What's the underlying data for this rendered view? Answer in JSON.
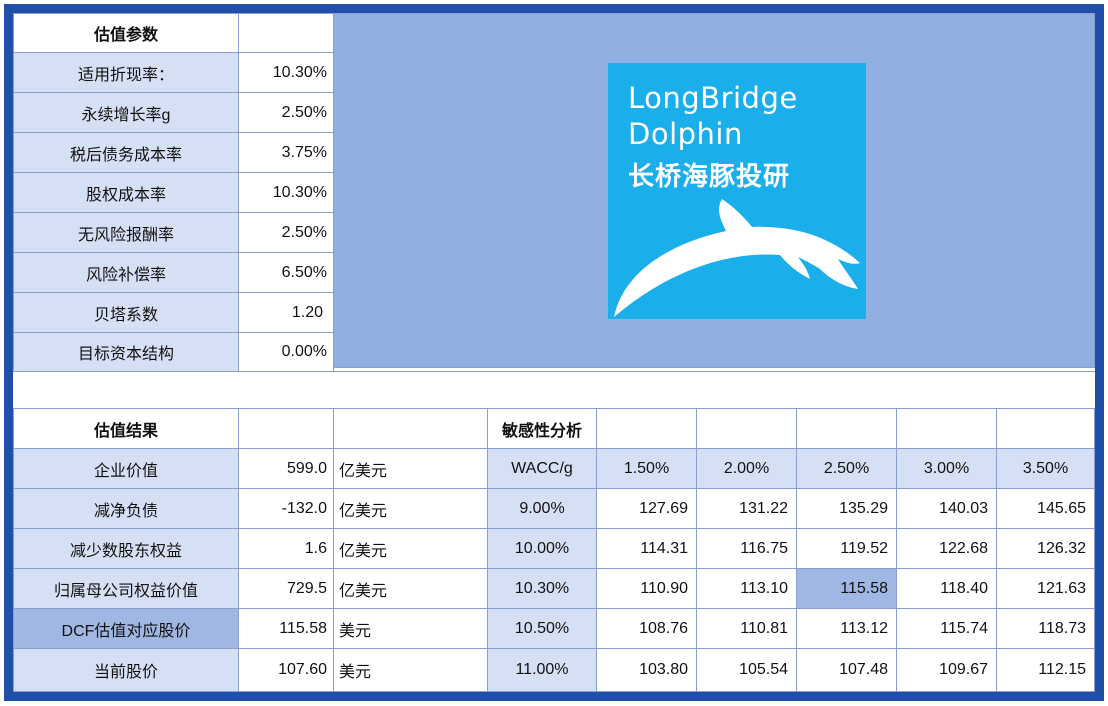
{
  "params": {
    "title": "估值参数",
    "rows": [
      {
        "label": "适用折现率：",
        "value": "10.30%"
      },
      {
        "label": "永续增长率g",
        "value": "2.50%"
      },
      {
        "label": "税后债务成本率",
        "value": "3.75%"
      },
      {
        "label": "股权成本率",
        "value": "10.30%"
      },
      {
        "label": "无风险报酬率",
        "value": "2.50%"
      },
      {
        "label": "风险补偿率",
        "value": "6.50%"
      },
      {
        "label": "贝塔系数",
        "value": "1.20"
      },
      {
        "label": "目标资本结构",
        "value": "0.00%"
      }
    ]
  },
  "logo": {
    "line1": "LongBridge",
    "line2": "Dolphin",
    "line3": "长桥海豚投研"
  },
  "results": {
    "title": "估值结果",
    "rows": [
      {
        "label": "企业价值",
        "value": "599.0",
        "unit": "亿美元"
      },
      {
        "label": "减净负债",
        "value": "-132.0",
        "unit": "亿美元"
      },
      {
        "label": "减少数股东权益",
        "value": "1.6",
        "unit": "亿美元"
      },
      {
        "label": "归属母公司权益价值",
        "value": "729.5",
        "unit": "亿美元"
      },
      {
        "label": "DCF估值对应股价",
        "value": "115.58",
        "unit": "美元"
      },
      {
        "label": "当前股价",
        "value": "107.60",
        "unit": "美元"
      }
    ]
  },
  "sensitivity": {
    "title": "敏感性分析",
    "corner": "WACC/g",
    "g_values": [
      "1.50%",
      "2.00%",
      "2.50%",
      "3.00%",
      "3.50%"
    ],
    "rows": [
      {
        "wacc": "9.00%",
        "values": [
          "127.69",
          "131.22",
          "135.29",
          "140.03",
          "145.65"
        ]
      },
      {
        "wacc": "10.00%",
        "values": [
          "114.31",
          "116.75",
          "119.52",
          "122.68",
          "126.32"
        ]
      },
      {
        "wacc": "10.30%",
        "values": [
          "110.90",
          "113.10",
          "115.58",
          "118.40",
          "121.63"
        ]
      },
      {
        "wacc": "10.50%",
        "values": [
          "108.76",
          "110.81",
          "113.12",
          "115.74",
          "118.73"
        ]
      },
      {
        "wacc": "11.00%",
        "values": [
          "103.80",
          "105.54",
          "107.48",
          "109.67",
          "112.15"
        ]
      }
    ]
  }
}
